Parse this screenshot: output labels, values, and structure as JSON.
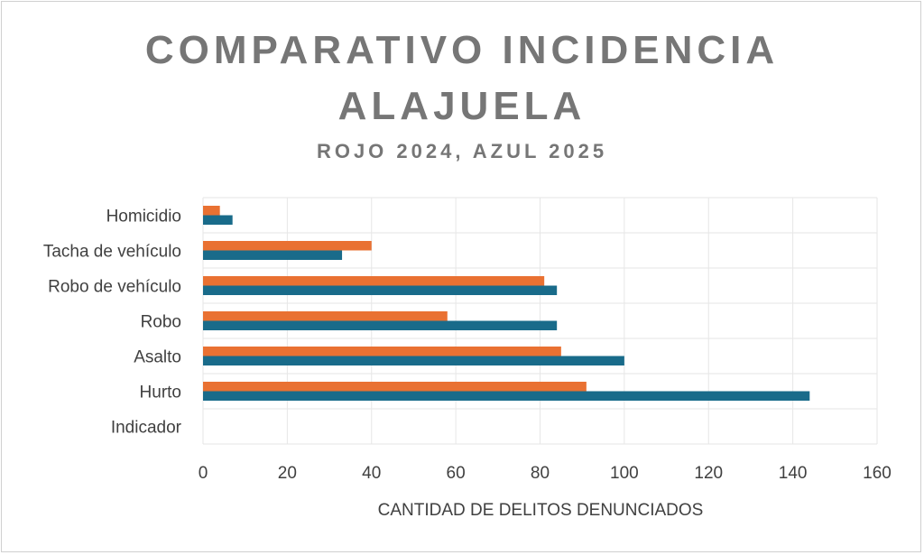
{
  "chart_data": {
    "type": "bar",
    "orientation": "horizontal",
    "title": "COMPARATIVO INCIDENCIA ALAJUELA",
    "title_lines": [
      "COMPARATIVO INCIDENCIA",
      "ALAJUELA"
    ],
    "subtitle": "ROJO 2024, AZUL 2025",
    "xlabel": "CANTIDAD DE DELITOS DENUNCIADOS",
    "ylabel": "",
    "xlim": [
      0,
      160
    ],
    "xticks": [
      0,
      20,
      40,
      60,
      80,
      100,
      120,
      140,
      160
    ],
    "grid": true,
    "categories": [
      "Indicador",
      "Hurto",
      "Asalto ",
      "Robo",
      "Robo de vehículo",
      "Tacha de vehículo",
      "Homicidio"
    ],
    "series": [
      {
        "name": "2024",
        "color": "#E97132",
        "values": [
          null,
          91,
          85,
          58,
          81,
          40,
          4
        ]
      },
      {
        "name": "2025",
        "color": "#196B8A",
        "values": [
          null,
          144,
          100,
          84,
          84,
          33,
          7
        ]
      }
    ]
  }
}
